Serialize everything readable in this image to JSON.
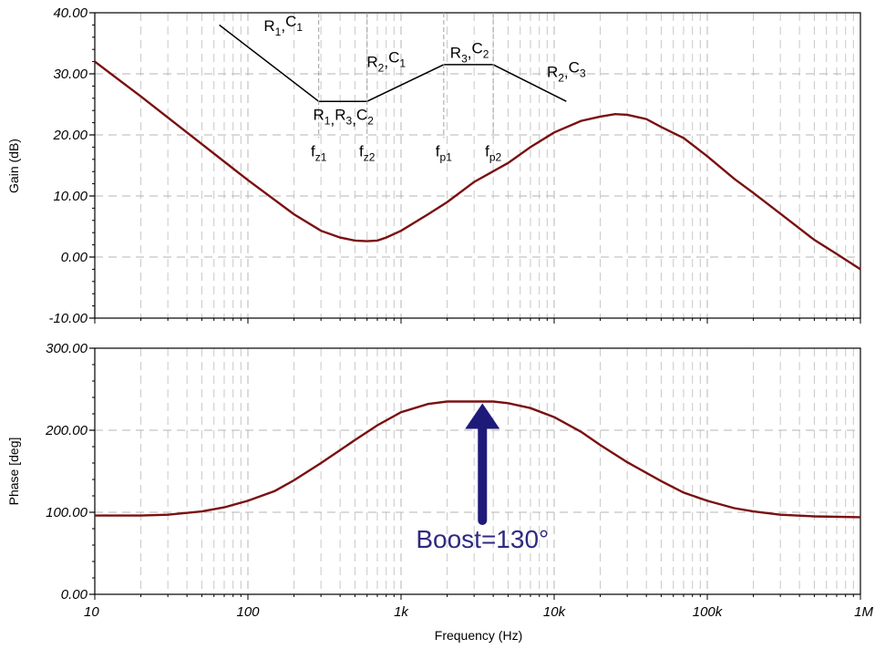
{
  "chart_data": [
    {
      "type": "line",
      "id": "gain",
      "xscale": "log",
      "xlim": [
        10,
        1000000
      ],
      "ylim": [
        -10,
        40
      ],
      "ylabel": "Gain (dB)",
      "yticks": [
        "-10.00",
        "0.00",
        "10.00",
        "20.00",
        "30.00",
        "40.00"
      ],
      "series": [
        {
          "color": "#7a1010",
          "x": [
            10,
            20,
            50,
            100,
            200,
            300,
            400,
            500,
            600,
            700,
            800,
            1000,
            1500,
            2000,
            3000,
            5000,
            7000,
            10000,
            15000,
            20000,
            25000,
            30000,
            40000,
            50000,
            70000,
            100000,
            150000,
            200000,
            300000,
            500000,
            700000,
            1000000
          ],
          "y": [
            32,
            26.3,
            18.5,
            12.6,
            7.0,
            4.3,
            3.2,
            2.7,
            2.6,
            2.7,
            3.2,
            4.3,
            7.0,
            9.0,
            12.3,
            15.4,
            18.0,
            20.4,
            22.3,
            23.0,
            23.4,
            23.3,
            22.6,
            21.3,
            19.5,
            16.5,
            12.8,
            10.5,
            7.1,
            2.8,
            0.5,
            -2.0
          ]
        }
      ],
      "asymptote": {
        "x": [
          65,
          290,
          600,
          1900,
          4000,
          12000
        ],
        "y": [
          38,
          25.5,
          25.5,
          31.5,
          31.5,
          25.5
        ]
      },
      "annotations": [
        {
          "base": "R",
          "sub": "1",
          "sep": ",",
          "base2": "C",
          "sub2": "1",
          "x": 170,
          "y": 37,
          "anchor": "middle"
        },
        {
          "base": "R",
          "sub": "2",
          "sep": ",",
          "base2": "C",
          "sub2": "1",
          "x": 800,
          "y": 31.1,
          "anchor": "middle"
        },
        {
          "base": "R",
          "sub": "3",
          "sep": ",",
          "base2": "C",
          "sub2": "2",
          "x": 2800,
          "y": 32.6,
          "anchor": "middle"
        },
        {
          "base": "R",
          "sub": "2",
          "sep": ",",
          "base2": "C",
          "sub2": "3",
          "x": 12000,
          "y": 29.5,
          "anchor": "middle"
        }
      ],
      "annotation_triple": {
        "items": [
          [
            "R",
            "1"
          ],
          [
            "R",
            "3"
          ],
          [
            "C",
            "2"
          ]
        ],
        "x": 420,
        "y": 22.5
      },
      "corner_labels": [
        {
          "base": "f",
          "sub": "z1",
          "x": 290
        },
        {
          "base": "f",
          "sub": "z2",
          "x": 600
        },
        {
          "base": "f",
          "sub": "p1",
          "x": 1900
        },
        {
          "base": "f",
          "sub": "p2",
          "x": 4000
        }
      ],
      "corner_label_y": 16.5
    },
    {
      "type": "line",
      "id": "phase",
      "xscale": "log",
      "xlim": [
        10,
        1000000
      ],
      "ylim": [
        0,
        300
      ],
      "ylabel": "Phase [deg]",
      "xlabel": "Frequency (Hz)",
      "yticks": [
        "0.00",
        "100.00",
        "200.00",
        "300.00"
      ],
      "xticks": [
        "10",
        "100",
        "1k",
        "10k",
        "100k",
        "1M"
      ],
      "series": [
        {
          "color": "#7a1010",
          "x": [
            10,
            20,
            30,
            50,
            70,
            100,
            150,
            200,
            300,
            500,
            700,
            1000,
            1500,
            2000,
            2500,
            3000,
            3500,
            4000,
            5000,
            7000,
            10000,
            15000,
            20000,
            30000,
            50000,
            70000,
            100000,
            150000,
            200000,
            300000,
            500000,
            1000000
          ],
          "y": [
            96,
            96,
            97,
            101,
            106,
            114,
            126,
            139,
            160,
            188,
            206,
            222,
            232,
            235,
            235,
            235,
            235,
            235,
            233,
            227,
            216,
            198,
            182,
            161,
            138,
            124,
            114,
            105,
            101,
            97,
            95,
            94
          ]
        }
      ],
      "boost_label": "Boost=130°",
      "arrow": {
        "x": 3400,
        "y_from": 90,
        "y_to": 235
      }
    }
  ]
}
